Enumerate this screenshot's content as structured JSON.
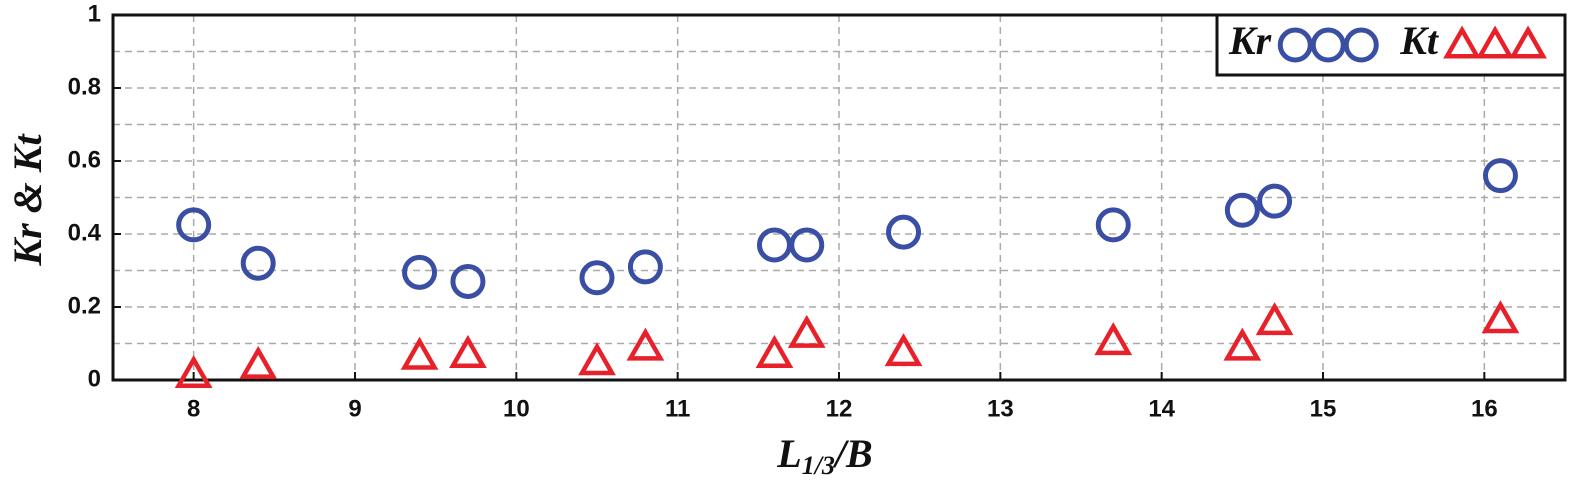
{
  "chart_data": {
    "type": "scatter",
    "x_label": [
      "L",
      "1/3",
      "/B"
    ],
    "y_label": "Kr & Kt",
    "x": [
      8,
      8.4,
      9.4,
      9.7,
      10.5,
      10.8,
      11.6,
      11.8,
      12.4,
      13.7,
      14.5,
      14.7,
      16.1
    ],
    "series": [
      {
        "name": "Kr",
        "marker": "circle",
        "color": "#3a4fa3",
        "values": [
          0.425,
          0.32,
          0.295,
          0.27,
          0.28,
          0.31,
          0.37,
          0.37,
          0.405,
          0.425,
          0.465,
          0.49,
          0.56
        ]
      },
      {
        "name": "Kt",
        "marker": "triangle",
        "color": "#e8202a",
        "values": [
          0.015,
          0.04,
          0.065,
          0.07,
          0.05,
          0.09,
          0.07,
          0.125,
          0.075,
          0.105,
          0.09,
          0.16,
          0.165
        ]
      }
    ],
    "xlim": [
      7.5,
      16.5
    ],
    "xticks": [
      8,
      9,
      10,
      11,
      12,
      13,
      14,
      15,
      16
    ],
    "ylim": [
      0,
      1
    ],
    "yticks": [
      0,
      0.2,
      0.4,
      0.6,
      0.8,
      1
    ],
    "y_minor_grid": [
      0.1,
      0.3,
      0.5,
      0.7,
      0.9
    ],
    "grid": true,
    "legend_position": "upper-right"
  }
}
